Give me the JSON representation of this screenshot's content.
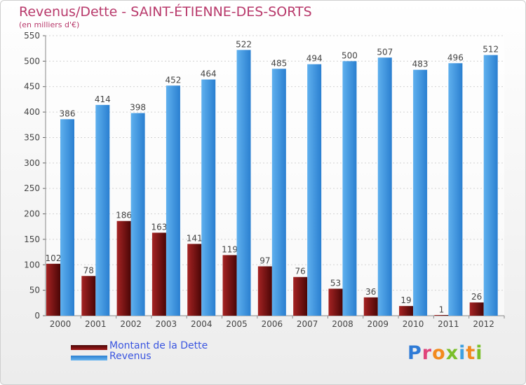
{
  "chart_data": {
    "type": "bar",
    "title": "Revenus/Dette - SAINT-ÉTIENNE-DES-SORTS",
    "subtitle": "(en milliers d'€)",
    "categories": [
      "2000",
      "2001",
      "2002",
      "2003",
      "2004",
      "2005",
      "2006",
      "2007",
      "2008",
      "2009",
      "2010",
      "2011",
      "2012"
    ],
    "series": [
      {
        "name": "Montant de la Dette",
        "color": "#7a1010",
        "values": [
          102,
          78,
          186,
          163,
          141,
          119,
          97,
          76,
          53,
          36,
          19,
          1,
          26
        ]
      },
      {
        "name": "Revenus",
        "color": "#3f95e0",
        "values": [
          386,
          414,
          398,
          452,
          464,
          522,
          485,
          494,
          500,
          507,
          483,
          496,
          512
        ]
      }
    ],
    "ylim": [
      0,
      550
    ],
    "yticks": [
      0,
      50,
      100,
      150,
      200,
      250,
      300,
      350,
      400,
      450,
      500,
      550
    ],
    "grid": true,
    "legend": "bottom-left"
  },
  "logo": {
    "text": "Proxiti",
    "letter_colors": [
      "#2f7bd6",
      "#e0457b",
      "#f28a1e",
      "#7abf2a",
      "#3fa0e0",
      "#f28a1e",
      "#7abf2a"
    ]
  }
}
